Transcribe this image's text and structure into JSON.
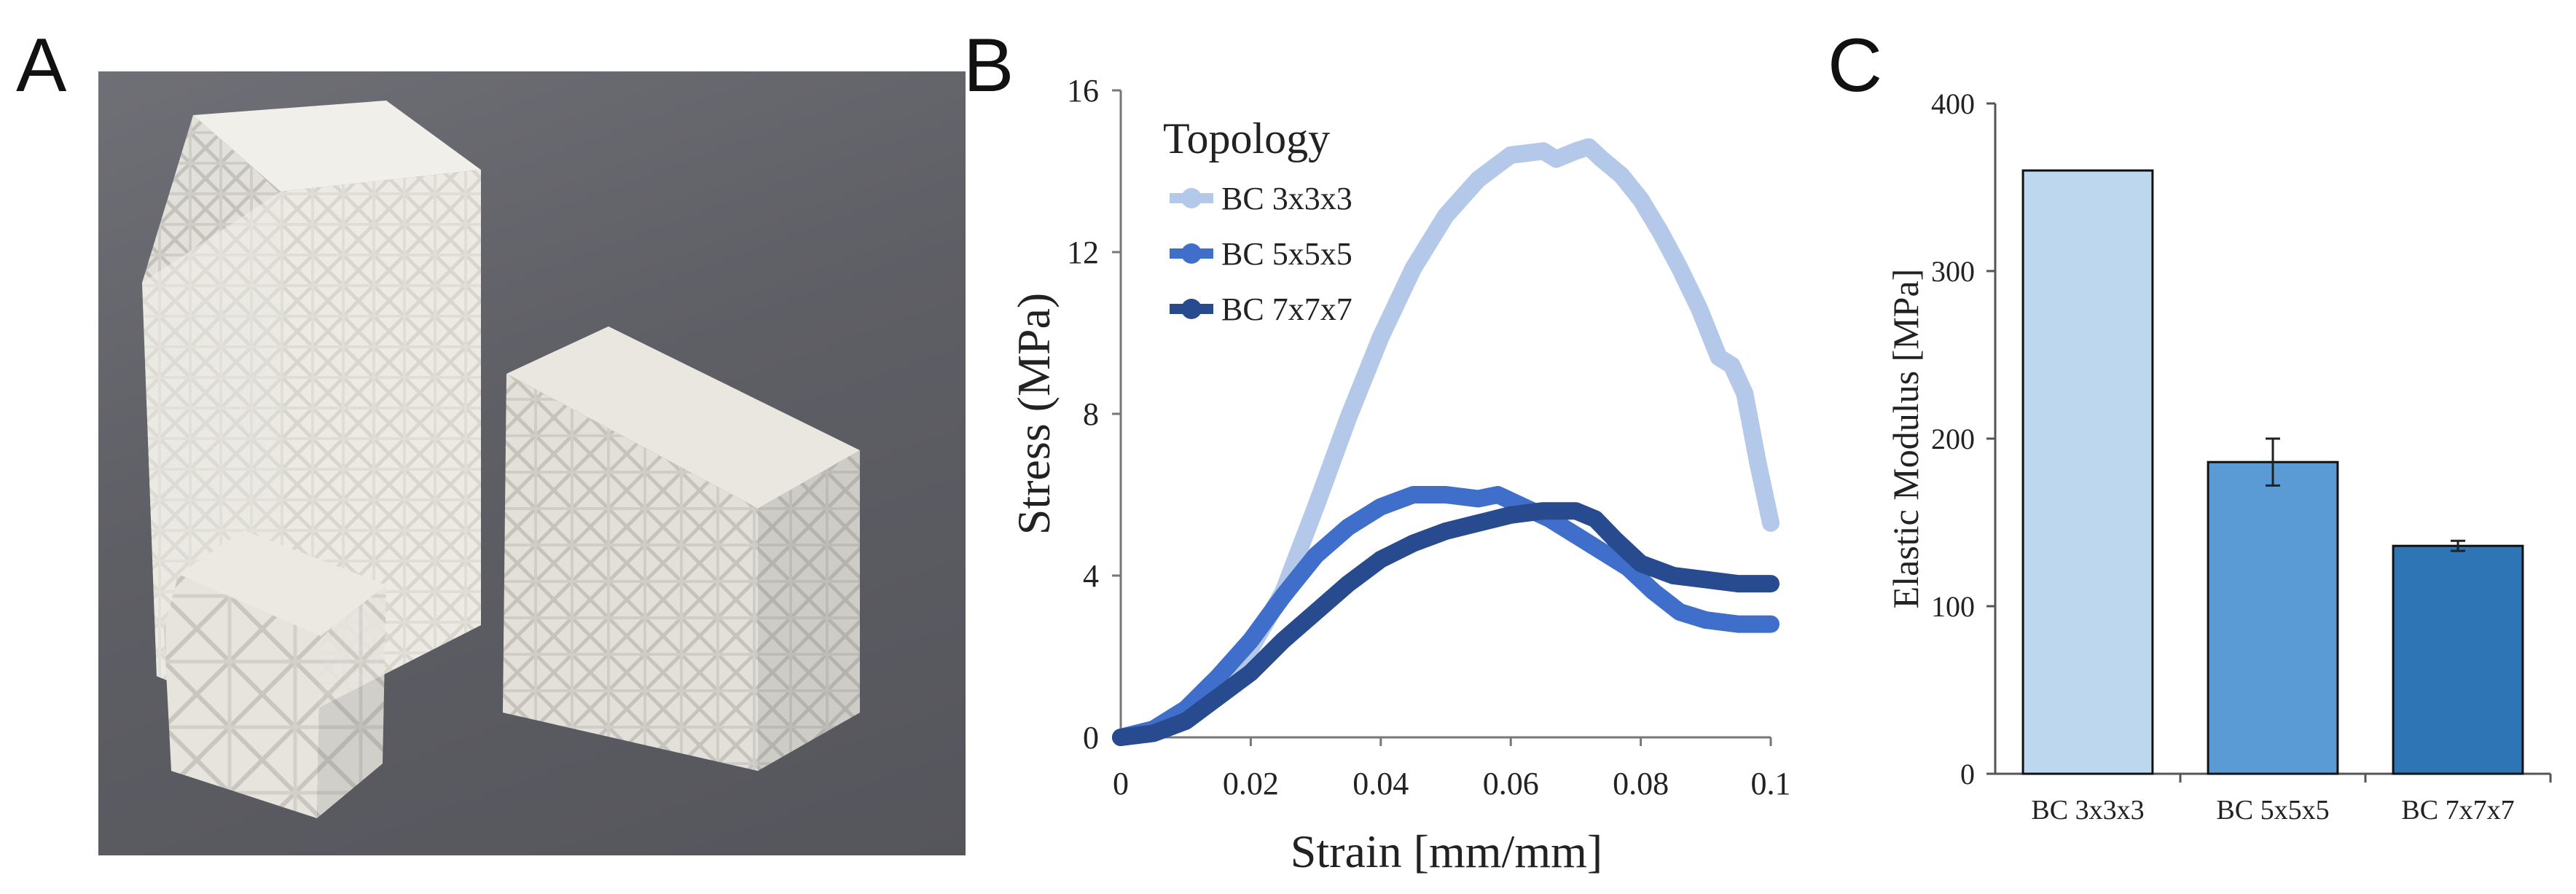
{
  "panels": {
    "a": {
      "letter": "A"
    },
    "b": {
      "letter": "B"
    },
    "c": {
      "letter": "C"
    }
  },
  "colors": {
    "bc3": "#b4c9ea",
    "bc5": "#3f6fca",
    "bc7": "#284a8e",
    "bar3": "#bdd7ee",
    "bar5": "#5b9bd5",
    "bar7": "#2e75b6"
  },
  "chart_data": [
    {
      "type": "line",
      "xlabel": "Strain [mm/mm]",
      "ylabel": "Stress (MPa)",
      "xlim": [
        0,
        0.1
      ],
      "ylim": [
        0,
        16
      ],
      "xticks": [
        "0",
        "0.02",
        "0.04",
        "0.06",
        "0.08",
        "0.1"
      ],
      "yticks": [
        "0",
        "4",
        "8",
        "12",
        "16"
      ],
      "legend_title": "Topology",
      "series": [
        {
          "name": "BC 3x3x3",
          "x": [
            0,
            0.005,
            0.01,
            0.015,
            0.02,
            0.025,
            0.03,
            0.035,
            0.04,
            0.045,
            0.05,
            0.055,
            0.06,
            0.065,
            0.067,
            0.07,
            0.072,
            0.074,
            0.077,
            0.08,
            0.083,
            0.086,
            0.089,
            0.092,
            0.094,
            0.096,
            0.098,
            0.1
          ],
          "y": [
            0,
            0.2,
            0.6,
            1.3,
            2.2,
            3.6,
            5.7,
            7.9,
            9.9,
            11.6,
            12.9,
            13.8,
            14.4,
            14.5,
            14.3,
            14.5,
            14.6,
            14.3,
            13.9,
            13.3,
            12.5,
            11.6,
            10.6,
            9.4,
            9.2,
            8.5,
            6.8,
            5.3
          ]
        },
        {
          "name": "BC 5x5x5",
          "x": [
            0,
            0.005,
            0.01,
            0.015,
            0.02,
            0.025,
            0.03,
            0.035,
            0.04,
            0.045,
            0.05,
            0.055,
            0.058,
            0.062,
            0.066,
            0.07,
            0.074,
            0.078,
            0.082,
            0.086,
            0.09,
            0.095,
            0.1
          ],
          "y": [
            0,
            0.2,
            0.7,
            1.5,
            2.4,
            3.5,
            4.5,
            5.2,
            5.7,
            6.0,
            6.0,
            5.9,
            6.0,
            5.7,
            5.4,
            5.0,
            4.6,
            4.2,
            3.6,
            3.1,
            2.9,
            2.8,
            2.8
          ]
        },
        {
          "name": "BC 7x7x7",
          "x": [
            0,
            0.005,
            0.01,
            0.015,
            0.02,
            0.025,
            0.03,
            0.035,
            0.04,
            0.045,
            0.05,
            0.055,
            0.06,
            0.065,
            0.07,
            0.073,
            0.076,
            0.08,
            0.085,
            0.09,
            0.095,
            0.1
          ],
          "y": [
            0,
            0.1,
            0.4,
            1.0,
            1.6,
            2.4,
            3.1,
            3.8,
            4.4,
            4.8,
            5.1,
            5.3,
            5.5,
            5.6,
            5.6,
            5.4,
            4.9,
            4.3,
            4.0,
            3.9,
            3.8,
            3.8
          ]
        }
      ]
    },
    {
      "type": "bar",
      "ylabel": "Elastic Modulus [MPa]",
      "ylim": [
        0,
        400
      ],
      "yticks": [
        "0",
        "100",
        "200",
        "300",
        "400"
      ],
      "categories": [
        "BC 3x3x3",
        "BC 5x5x5",
        "BC 7x7x7"
      ],
      "values": [
        360,
        186,
        136
      ],
      "errors": [
        0,
        14,
        3
      ]
    }
  ]
}
